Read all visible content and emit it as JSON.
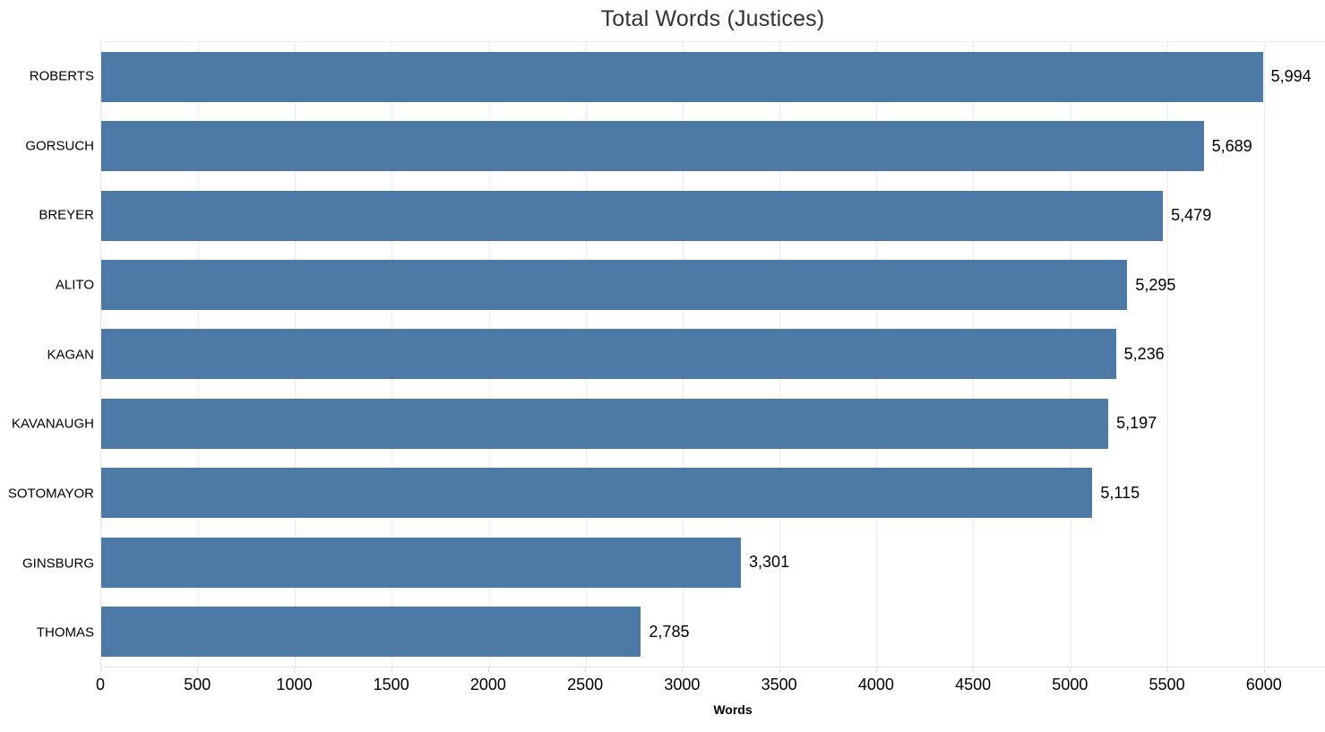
{
  "chart_data": {
    "type": "bar",
    "orientation": "horizontal",
    "title": "Total Words (Justices)",
    "categories": [
      "ROBERTS",
      "GORSUCH",
      "BREYER",
      "ALITO",
      "KAGAN",
      "KAVANAUGH",
      "SOTOMAYOR",
      "GINSBURG",
      "THOMAS"
    ],
    "values": [
      5994,
      5689,
      5479,
      5295,
      5236,
      5197,
      5115,
      3301,
      2785
    ],
    "value_labels": [
      "5,994",
      "5,689",
      "5,479",
      "5,295",
      "5,236",
      "5,197",
      "5,115",
      "3,301",
      "2,785"
    ],
    "xlabel": "Words",
    "x_ticks": [
      0,
      500,
      1000,
      1500,
      2000,
      2500,
      3000,
      3500,
      4000,
      4500,
      5000,
      5500,
      6000
    ],
    "xlim": [
      0,
      6315
    ],
    "grid": "vertical-only",
    "legend": "none",
    "sort": "descending"
  },
  "colors": {
    "bar": "#4D79A7",
    "title_text": "#333333",
    "label_text": "#000000",
    "gridline": "#EAEAEA",
    "axis_line": "#E2E2E2",
    "tick_mark": "#D9D9D9",
    "sort_icon": "#8A8A8A",
    "background": "#FFFFFF"
  },
  "icons": {
    "sort": "sort-descending-icon"
  }
}
